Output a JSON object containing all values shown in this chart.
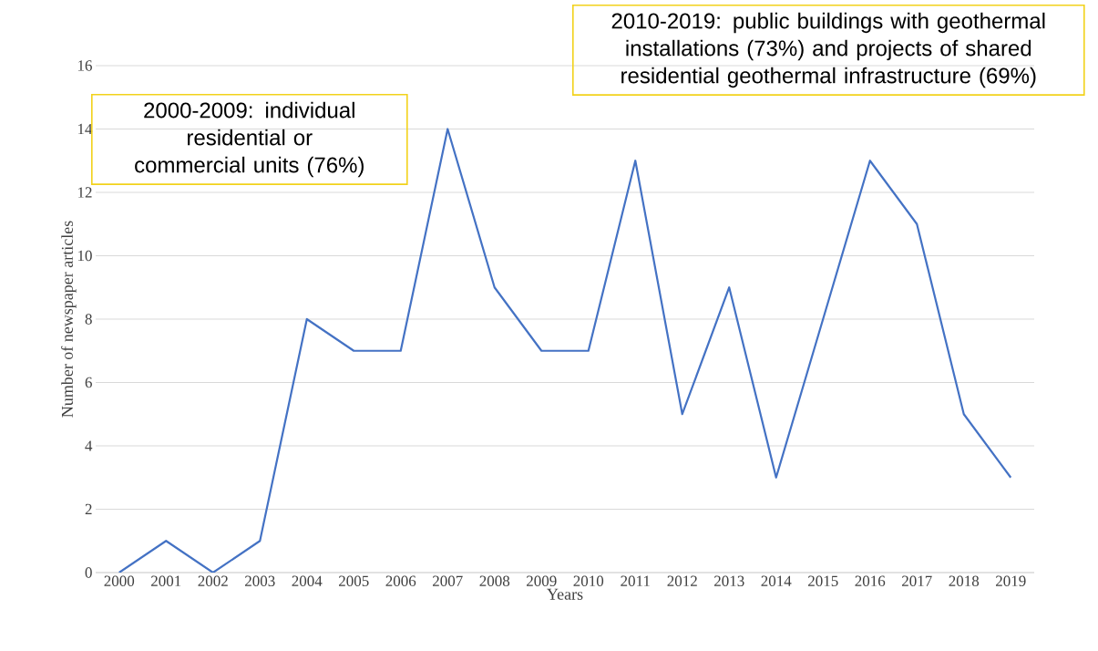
{
  "chart_data": {
    "type": "line",
    "xlabel": "Years",
    "ylabel": "Number of newspaper articles",
    "categories": [
      "2000",
      "2001",
      "2002",
      "2003",
      "2004",
      "2005",
      "2006",
      "2007",
      "2008",
      "2009",
      "2010",
      "2011",
      "2012",
      "2013",
      "2014",
      "2015",
      "2016",
      "2017",
      "2018",
      "2019"
    ],
    "series": [
      {
        "color": "#4472c4",
        "values": [
          0,
          1,
          0,
          1,
          8,
          7,
          7,
          14,
          9,
          7,
          7,
          13,
          5,
          9,
          3,
          8,
          13,
          11,
          5,
          3
        ]
      }
    ],
    "ylim": [
      0,
      16
    ],
    "yticks": [
      0,
      2,
      4,
      6,
      8,
      10,
      12,
      14,
      16
    ],
    "grid": "y",
    "marker": "none",
    "line_style": "solid",
    "annotations": [
      "2000-2009: individual residential or commercial units (76%)",
      "2010-2019: public buildings with geothermal installations (73%) and projects of shared residential geothermal infrastructure (69%)"
    ]
  }
}
